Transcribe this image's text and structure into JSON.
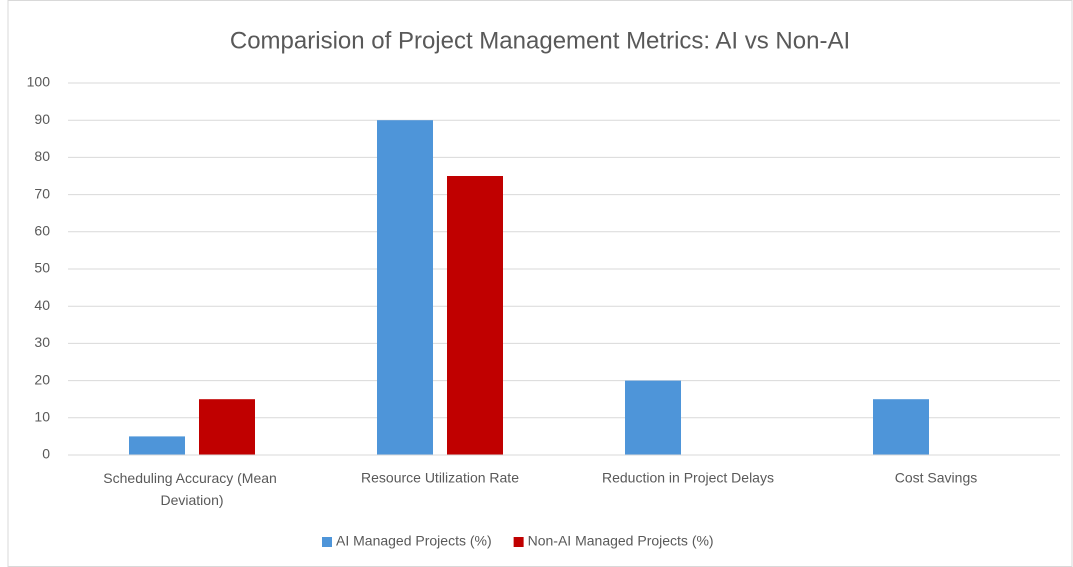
{
  "chart_data": {
    "type": "bar",
    "title": "Comparision of Project Management Metrics: AI vs Non-AI",
    "categories": [
      "Scheduling Accuracy (Mean Deviation)",
      "Resource Utilization Rate",
      "Reduction in Project Delays",
      "Cost Savings"
    ],
    "series": [
      {
        "name": "AI Managed Projects (%)",
        "color": "#4e95d9",
        "values": [
          5,
          90,
          20,
          15
        ]
      },
      {
        "name": "Non-AI Managed Projects (%)",
        "color": "#c00000",
        "values": [
          15,
          75,
          null,
          null
        ]
      }
    ],
    "ylim": [
      0,
      100
    ],
    "yticks": [
      0,
      10,
      20,
      30,
      40,
      50,
      60,
      70,
      80,
      90,
      100
    ],
    "grid": true,
    "legend": "bottom"
  }
}
